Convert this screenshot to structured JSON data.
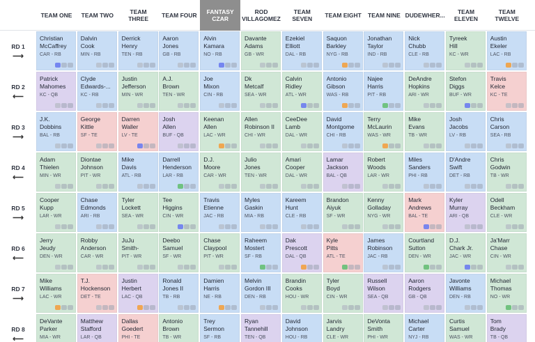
{
  "teams": [
    {
      "name": "TEAM ONE"
    },
    {
      "name": "TEAM TWO"
    },
    {
      "name": "TEAM THREE"
    },
    {
      "name": "TEAM FOUR"
    },
    {
      "name": "FANTASY CZAR",
      "active": true
    },
    {
      "name": "ROD VILLAGOMEZ"
    },
    {
      "name": "TEAM SEVEN"
    },
    {
      "name": "TEAM EIGHT"
    },
    {
      "name": "TEAM NINE"
    },
    {
      "name": "DUDEWHER..."
    },
    {
      "name": "TEAM ELEVEN"
    },
    {
      "name": "TEAM TWELVE"
    }
  ],
  "rounds": [
    {
      "label": "RD 1",
      "arrow": "⟶",
      "picks": [
        {
          "first": "Christian",
          "last": "McCaffrey",
          "team": "CAR",
          "pos": "RB",
          "badge": "note"
        },
        {
          "first": "Dalvin",
          "last": "Cook",
          "team": "MIN",
          "pos": "RB",
          "badge": "sq"
        },
        {
          "first": "Derrick",
          "last": "Henry",
          "team": "TEN",
          "pos": "RB",
          "badge": ""
        },
        {
          "first": "Aaron",
          "last": "Jones",
          "team": "GB",
          "pos": "RB",
          "badge": ""
        },
        {
          "first": "Alvin",
          "last": "Kamara",
          "team": "NO",
          "pos": "RB",
          "badge": "note"
        },
        {
          "first": "Davante",
          "last": "Adams",
          "team": "GB",
          "pos": "WR",
          "badge": ""
        },
        {
          "first": "Ezekiel",
          "last": "Elliott",
          "team": "DAL",
          "pos": "RB",
          "badge": ""
        },
        {
          "first": "Saquon",
          "last": "Barkley",
          "team": "NYG",
          "pos": "RB",
          "badge": "flag"
        },
        {
          "first": "Jonathan",
          "last": "Taylor",
          "team": "IND",
          "pos": "RB",
          "badge": ""
        },
        {
          "first": "Nick",
          "last": "Chubb",
          "team": "CLE",
          "pos": "RB",
          "badge": ""
        },
        {
          "first": "Tyreek",
          "last": "Hill",
          "team": "KC",
          "pos": "WR",
          "badge": "sq"
        },
        {
          "first": "Austin",
          "last": "Ekeler",
          "team": "LAC",
          "pos": "RB",
          "badge": "flag"
        }
      ]
    },
    {
      "label": "RD 2",
      "arrow": "⟵",
      "picks": [
        {
          "first": "Patrick",
          "last": "Mahomes",
          "team": "KC",
          "pos": "QB",
          "badge": ""
        },
        {
          "first": "Clyde",
          "last": "Edwards-...",
          "team": "KC",
          "pos": "RB",
          "badge": ""
        },
        {
          "first": "Justin",
          "last": "Jefferson",
          "team": "MIN",
          "pos": "WR",
          "badge": ""
        },
        {
          "first": "A.J.",
          "last": "Brown",
          "team": "TEN",
          "pos": "WR",
          "badge": ""
        },
        {
          "first": "Joe",
          "last": "Mixon",
          "team": "CIN",
          "pos": "RB",
          "badge": ""
        },
        {
          "first": "Dk",
          "last": "Metcalf",
          "team": "SEA",
          "pos": "WR",
          "badge": ""
        },
        {
          "first": "Calvin",
          "last": "Ridley",
          "team": "ATL",
          "pos": "WR",
          "badge": "note"
        },
        {
          "first": "Antonio",
          "last": "Gibson",
          "team": "WAS",
          "pos": "RB",
          "badge": "flag"
        },
        {
          "first": "Najee",
          "last": "Harris",
          "team": "PIT",
          "pos": "RB",
          "badge": "star"
        },
        {
          "first": "DeAndre",
          "last": "Hopkins",
          "team": "ARI",
          "pos": "WR",
          "badge": ""
        },
        {
          "first": "Stefon",
          "last": "Diggs",
          "team": "BUF",
          "pos": "WR",
          "badge": "note"
        },
        {
          "first": "Travis",
          "last": "Kelce",
          "team": "KC",
          "pos": "TE",
          "badge": "sq"
        }
      ]
    },
    {
      "label": "RD 3",
      "arrow": "⟶",
      "picks": [
        {
          "first": "J.K.",
          "last": "Dobbins",
          "team": "BAL",
          "pos": "RB",
          "badge": ""
        },
        {
          "first": "George",
          "last": "Kittle",
          "team": "SF",
          "pos": "TE",
          "badge": ""
        },
        {
          "first": "Darren",
          "last": "Waller",
          "team": "LV",
          "pos": "TE",
          "badge": "note"
        },
        {
          "first": "Josh",
          "last": "Allen",
          "team": "BUF",
          "pos": "QB",
          "badge": ""
        },
        {
          "first": "Keenan",
          "last": "Allen",
          "team": "LAC",
          "pos": "WR",
          "badge": "flag"
        },
        {
          "first": "Allen",
          "last": "Robinson II",
          "team": "CHI",
          "pos": "WR",
          "badge": ""
        },
        {
          "first": "CeeDee",
          "last": "Lamb",
          "team": "DAL",
          "pos": "WR",
          "badge": ""
        },
        {
          "first": "David",
          "last": "Montgome",
          "team": "CHI",
          "pos": "RB",
          "badge": ""
        },
        {
          "first": "Terry",
          "last": "McLaurin",
          "team": "WAS",
          "pos": "WR",
          "badge": "flag"
        },
        {
          "first": "Mike",
          "last": "Evans",
          "team": "TB",
          "pos": "WR",
          "badge": ""
        },
        {
          "first": "Josh",
          "last": "Jacobs",
          "team": "LV",
          "pos": "RB",
          "badge": ""
        },
        {
          "first": "Chris",
          "last": "Carson",
          "team": "SEA",
          "pos": "RB",
          "badge": ""
        }
      ]
    },
    {
      "label": "RD 4",
      "arrow": "⟵",
      "picks": [
        {
          "first": "Adam",
          "last": "Thielen",
          "team": "MIN",
          "pos": "WR",
          "badge": ""
        },
        {
          "first": "Diontae",
          "last": "Johnson",
          "team": "PIT",
          "pos": "WR",
          "badge": ""
        },
        {
          "first": "Mike",
          "last": "Davis",
          "team": "ATL",
          "pos": "RB",
          "badge": ""
        },
        {
          "first": "Darrell",
          "last": "Henderson",
          "team": "LAR",
          "pos": "RB",
          "badge": "star"
        },
        {
          "first": "D.J.",
          "last": "Moore",
          "team": "CAR",
          "pos": "WR",
          "badge": ""
        },
        {
          "first": "Julio",
          "last": "Jones",
          "team": "TEN",
          "pos": "WR",
          "badge": ""
        },
        {
          "first": "Amari",
          "last": "Cooper",
          "team": "DAL",
          "pos": "WR",
          "badge": ""
        },
        {
          "first": "Lamar",
          "last": "Jackson",
          "team": "BAL",
          "pos": "QB",
          "badge": ""
        },
        {
          "first": "Robert",
          "last": "Woods",
          "team": "LAR",
          "pos": "WR",
          "badge": ""
        },
        {
          "first": "Miles",
          "last": "Sanders",
          "team": "PHI",
          "pos": "RB",
          "badge": ""
        },
        {
          "first": "D'Andre",
          "last": "Swift",
          "team": "DET",
          "pos": "RB",
          "badge": ""
        },
        {
          "first": "Chris",
          "last": "Godwin",
          "team": "TB",
          "pos": "WR",
          "badge": ""
        }
      ]
    },
    {
      "label": "RD 5",
      "arrow": "⟶",
      "picks": [
        {
          "first": "Cooper",
          "last": "Kupp",
          "team": "LAR",
          "pos": "WR",
          "badge": ""
        },
        {
          "first": "Chase",
          "last": "Edmonds",
          "team": "ARI",
          "pos": "RB",
          "badge": ""
        },
        {
          "first": "Tyler",
          "last": "Lockett",
          "team": "SEA",
          "pos": "WR",
          "badge": ""
        },
        {
          "first": "Tee",
          "last": "Higgins",
          "team": "CIN",
          "pos": "WR",
          "badge": "note"
        },
        {
          "first": "Travis",
          "last": "Etienne",
          "team": "JAC",
          "pos": "RB",
          "badge": ""
        },
        {
          "first": "Myles",
          "last": "Gaskin",
          "team": "MIA",
          "pos": "RB",
          "badge": ""
        },
        {
          "first": "Kareem",
          "last": "Hunt",
          "team": "CLE",
          "pos": "RB",
          "badge": ""
        },
        {
          "first": "Brandon",
          "last": "Aiyuk",
          "team": "SF",
          "pos": "WR",
          "badge": ""
        },
        {
          "first": "Kenny",
          "last": "Golladay",
          "team": "NYG",
          "pos": "WR",
          "badge": ""
        },
        {
          "first": "Mark",
          "last": "Andrews",
          "team": "BAL",
          "pos": "TE",
          "badge": "note"
        },
        {
          "first": "Kyler",
          "last": "Murray",
          "team": "ARI",
          "pos": "QB",
          "badge": ""
        },
        {
          "first": "Odell",
          "last": "Beckham",
          "team": "CLE",
          "pos": "WR",
          "badge": ""
        }
      ]
    },
    {
      "label": "RD 6",
      "arrow": "⟵",
      "picks": [
        {
          "first": "Jerry",
          "last": "Jeudy",
          "team": "DEN",
          "pos": "WR",
          "badge": ""
        },
        {
          "first": "Robby",
          "last": "Anderson",
          "team": "CAR",
          "pos": "WR",
          "badge": ""
        },
        {
          "first": "JuJu",
          "last": "Smith-",
          "team": "PIT",
          "pos": "WR",
          "badge": ""
        },
        {
          "first": "Deebo",
          "last": "Samuel",
          "team": "SF",
          "pos": "WR",
          "badge": ""
        },
        {
          "first": "Chase",
          "last": "Claypool",
          "team": "PIT",
          "pos": "WR",
          "badge": ""
        },
        {
          "first": "Raheem",
          "last": "Mostert",
          "team": "SF",
          "pos": "RB",
          "badge": "star"
        },
        {
          "first": "Dak",
          "last": "Prescott",
          "team": "DAL",
          "pos": "QB",
          "badge": "flag"
        },
        {
          "first": "Kyle",
          "last": "Pitts",
          "team": "ATL",
          "pos": "TE",
          "badge": "star"
        },
        {
          "first": "James",
          "last": "Robinson",
          "team": "JAC",
          "pos": "RB",
          "badge": ""
        },
        {
          "first": "Courtland",
          "last": "Sutton",
          "team": "DEN",
          "pos": "WR",
          "badge": "star"
        },
        {
          "first": "D.J.",
          "last": "Chark Jr.",
          "team": "JAC",
          "pos": "WR",
          "badge": "note"
        },
        {
          "first": "Ja'Marr",
          "last": "Chase",
          "team": "CIN",
          "pos": "WR",
          "badge": ""
        }
      ]
    },
    {
      "label": "RD 7",
      "arrow": "⟶",
      "picks": [
        {
          "first": "Mike",
          "last": "Williams",
          "team": "LAC",
          "pos": "WR",
          "badge": "flag"
        },
        {
          "first": "T.J.",
          "last": "Hockenson",
          "team": "DET",
          "pos": "TE",
          "badge": ""
        },
        {
          "first": "Justin",
          "last": "Herbert",
          "team": "LAC",
          "pos": "QB",
          "badge": "flag"
        },
        {
          "first": "Ronald",
          "last": "Jones II",
          "team": "TB",
          "pos": "RB",
          "badge": ""
        },
        {
          "first": "Damien",
          "last": "Harris",
          "team": "NE",
          "pos": "RB",
          "badge": "flag"
        },
        {
          "first": "Melvin",
          "last": "Gordon III",
          "team": "DEN",
          "pos": "RB",
          "badge": ""
        },
        {
          "first": "Brandin",
          "last": "Cooks",
          "team": "HOU",
          "pos": "WR",
          "badge": ""
        },
        {
          "first": "Tyler",
          "last": "Boyd",
          "team": "CIN",
          "pos": "WR",
          "badge": ""
        },
        {
          "first": "Russell",
          "last": "Wilson",
          "team": "SEA",
          "pos": "QB",
          "badge": ""
        },
        {
          "first": "Aaron",
          "last": "Rodgers",
          "team": "GB",
          "pos": "QB",
          "badge": ""
        },
        {
          "first": "Javonte",
          "last": "Williams",
          "team": "DEN",
          "pos": "RB",
          "badge": ""
        },
        {
          "first": "Michael",
          "last": "Thomas",
          "team": "NO",
          "pos": "WR",
          "badge": "star"
        }
      ]
    },
    {
      "label": "RD 8",
      "arrow": "⟵",
      "picks": [
        {
          "first": "DeVante",
          "last": "Parker",
          "team": "MIA",
          "pos": "WR",
          "badge": ""
        },
        {
          "first": "Matthew",
          "last": "Stafford",
          "team": "LAR",
          "pos": "QB",
          "badge": ""
        },
        {
          "first": "Dallas",
          "last": "Goedert",
          "team": "PHI",
          "pos": "TE",
          "badge": ""
        },
        {
          "first": "Antonio",
          "last": "Brown",
          "team": "TB",
          "pos": "WR",
          "badge": ""
        },
        {
          "first": "Trey",
          "last": "Sermon",
          "team": "SF",
          "pos": "RB",
          "badge": ""
        },
        {
          "first": "Ryan",
          "last": "Tannehill",
          "team": "TEN",
          "pos": "QB",
          "badge": ""
        },
        {
          "first": "David",
          "last": "Johnson",
          "team": "HOU",
          "pos": "RB",
          "badge": ""
        },
        {
          "first": "Jarvis",
          "last": "Landry",
          "team": "CLE",
          "pos": "WR",
          "badge": ""
        },
        {
          "first": "DeVonta",
          "last": "Smith",
          "team": "PHI",
          "pos": "WR",
          "badge": ""
        },
        {
          "first": "Michael",
          "last": "Carter",
          "team": "NYJ",
          "pos": "RB",
          "badge": ""
        },
        {
          "first": "Curtis",
          "last": "Samuel",
          "team": "WAS",
          "pos": "WR",
          "badge": ""
        },
        {
          "first": "Tom",
          "last": "Brady",
          "team": "TB",
          "pos": "QB",
          "badge": ""
        }
      ]
    }
  ],
  "colors": {
    "RB": "#c8ddf5",
    "WR": "#d0e7d6",
    "QB": "#dcd3ef",
    "TE": "#f5d0d0",
    "active_header": "#8e8e8e"
  }
}
